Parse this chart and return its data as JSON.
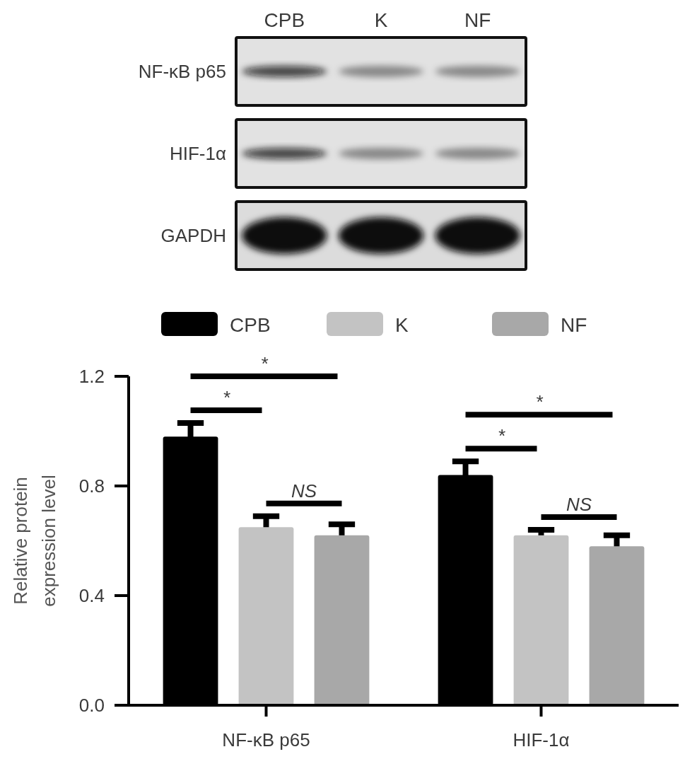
{
  "chart_data": [
    {
      "type": "other",
      "categories": [
        "CPB",
        "K",
        "NF"
      ],
      "y_categories": [
        "NF-κB p65",
        "HIF-1α",
        "GAPDH"
      ]
    },
    {
      "type": "bar",
      "categories": [
        "NF-κB p65",
        "HIF-1α"
      ],
      "ylabel": "Relative protein expression level",
      "ylim": [
        0,
        1.2
      ],
      "yticks": [
        {
          "value": 0,
          "label": "0.0"
        },
        0.4,
        0.8,
        1.2
      ],
      "legend": "top",
      "series": [
        {
          "name": "CPB",
          "color": "#000000",
          "values": [
            0.98,
            0.84
          ],
          "errors": [
            0.05,
            0.05
          ]
        },
        {
          "name": "K",
          "color": "#c3c3c3",
          "values": [
            0.65,
            0.62
          ],
          "errors": [
            0.04,
            0.02
          ]
        },
        {
          "name": "NF",
          "color": "#a8a8a8",
          "values": [
            0.62,
            0.58
          ],
          "errors": [
            0.04,
            0.04
          ]
        }
      ],
      "annotations": [
        "*",
        "*",
        "NS",
        "*",
        "*",
        "NS"
      ]
    }
  ]
}
